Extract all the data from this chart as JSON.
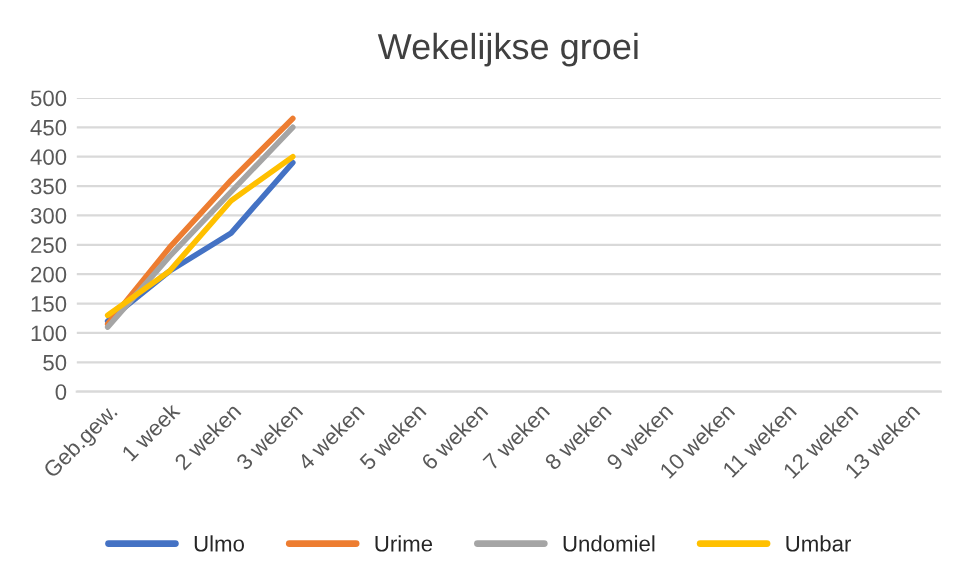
{
  "chart_data": {
    "type": "line",
    "title": "Wekelijkse groei",
    "categories": [
      "Geb.gew.",
      "1 week",
      "2 weken",
      "3 weken",
      "4 weken",
      "5 weken",
      "6 weken",
      "7 weken",
      "8 weken",
      "9 weken",
      "10 weken",
      "11 weken",
      "12 weken",
      "13 weken"
    ],
    "series": [
      {
        "name": "Ulmo",
        "color": "#4472c4",
        "values": [
          120,
          205,
          270,
          390,
          null,
          null,
          null,
          null,
          null,
          null,
          null,
          null,
          null,
          null
        ]
      },
      {
        "name": "Urime",
        "color": "#ed7d31",
        "values": [
          115,
          245,
          360,
          465,
          null,
          null,
          null,
          null,
          null,
          null,
          null,
          null,
          null,
          null
        ]
      },
      {
        "name": "Undomiel",
        "color": "#a5a5a5",
        "values": [
          110,
          230,
          340,
          450,
          null,
          null,
          null,
          null,
          null,
          null,
          null,
          null,
          null,
          null
        ]
      },
      {
        "name": "Umbar",
        "color": "#ffc000",
        "values": [
          130,
          205,
          325,
          400,
          null,
          null,
          null,
          null,
          null,
          null,
          null,
          null,
          null,
          null
        ]
      }
    ],
    "ylim": [
      0,
      500
    ],
    "yticks": [
      0,
      50,
      100,
      150,
      200,
      250,
      300,
      350,
      400,
      450,
      500
    ],
    "grid": "y",
    "legend": "bottom",
    "marker": "none",
    "line_style": "solid"
  }
}
